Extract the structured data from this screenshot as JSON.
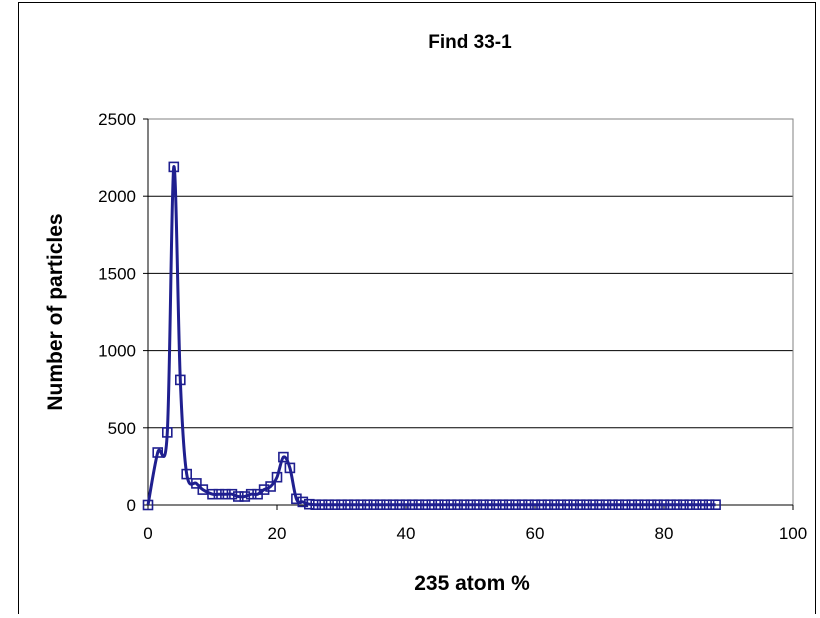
{
  "chart_data": {
    "type": "scatter",
    "title": "Find 33-1",
    "xlabel": "235 atom %",
    "ylabel": "Number of particles",
    "xlim": [
      0,
      100
    ],
    "ylim": [
      0,
      2500
    ],
    "xticks": [
      0,
      20,
      40,
      60,
      80,
      100
    ],
    "yticks": [
      0,
      500,
      1000,
      1500,
      2000,
      2500
    ],
    "grid": "horizontal",
    "legend": "none",
    "colors": {
      "series": "#1f1f8f",
      "plot_border": "#808080",
      "grid": "#000000"
    },
    "series": [
      {
        "x": [
          0,
          1.5,
          3,
          4,
          5,
          6,
          7.5,
          8.5,
          10,
          11,
          12,
          13,
          14,
          15,
          16,
          17,
          18,
          19,
          20,
          21,
          22,
          23,
          24,
          25,
          26,
          27,
          28,
          29,
          30,
          31,
          32,
          33,
          34,
          35,
          36,
          37,
          38,
          39,
          40,
          41,
          42,
          43,
          44,
          45,
          46,
          47,
          48,
          49,
          50,
          51,
          52,
          53,
          54,
          55,
          56,
          57,
          58,
          59,
          60,
          61,
          62,
          63,
          64,
          65,
          66,
          67,
          68,
          69,
          70,
          71,
          72,
          73,
          74,
          75,
          76,
          77,
          78,
          79,
          80,
          81,
          82,
          83,
          84,
          85,
          86,
          87,
          88
        ],
        "y": [
          0,
          340,
          470,
          2190,
          810,
          200,
          140,
          100,
          70,
          70,
          70,
          70,
          55,
          55,
          70,
          70,
          100,
          120,
          180,
          310,
          240,
          40,
          20,
          5,
          2,
          2,
          2,
          2,
          2,
          2,
          2,
          2,
          2,
          2,
          2,
          2,
          2,
          2,
          2,
          2,
          2,
          2,
          2,
          2,
          2,
          2,
          2,
          2,
          2,
          2,
          2,
          2,
          2,
          2,
          2,
          2,
          2,
          2,
          2,
          2,
          2,
          2,
          2,
          2,
          2,
          2,
          2,
          2,
          2,
          2,
          2,
          2,
          2,
          2,
          2,
          2,
          2,
          2,
          2,
          2,
          2,
          2,
          2,
          2,
          2,
          2,
          2
        ]
      }
    ]
  }
}
